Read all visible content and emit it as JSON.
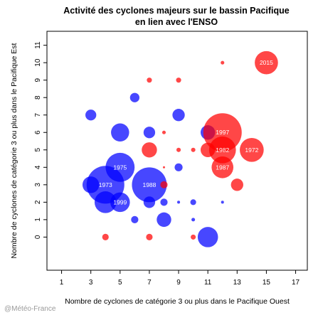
{
  "chart_data": {
    "type": "scatter",
    "title_lines": [
      "Activité des cyclones majeurs sur le bassin Pacifique",
      "en lien avec l'ENSO"
    ],
    "xlabel": "Nombre de cyclones de catégorie 3 ou plus dans le Pacifique Ouest",
    "ylabel": "Nombre de cyclones de catégorie 3 ou plus dans le Pacifique Est",
    "xlim": [
      0,
      17.8
    ],
    "ylim": [
      -1.9,
      11.8
    ],
    "xticks": [
      1,
      3,
      5,
      7,
      9,
      11,
      13,
      15,
      17
    ],
    "yticks": [
      0,
      1,
      2,
      3,
      4,
      5,
      6,
      7,
      8,
      9,
      10,
      11
    ],
    "grid": false,
    "legend": "none",
    "colors": {
      "red": "#ff0000",
      "blue": "#0000ff"
    },
    "points": [
      {
        "x": 15,
        "y": 10,
        "size": 3.2,
        "color": "red",
        "label": "2015"
      },
      {
        "x": 12,
        "y": 10,
        "size": 0.5,
        "color": "red",
        "label": ""
      },
      {
        "x": 7,
        "y": 9,
        "size": 0.7,
        "color": "red",
        "label": ""
      },
      {
        "x": 9,
        "y": 9,
        "size": 0.7,
        "color": "red",
        "label": ""
      },
      {
        "x": 6,
        "y": 8,
        "size": 1.3,
        "color": "blue",
        "label": ""
      },
      {
        "x": 3,
        "y": 7,
        "size": 1.5,
        "color": "blue",
        "label": ""
      },
      {
        "x": 9,
        "y": 7,
        "size": 1.7,
        "color": "blue",
        "label": ""
      },
      {
        "x": 5,
        "y": 6,
        "size": 2.5,
        "color": "blue",
        "label": ""
      },
      {
        "x": 7,
        "y": 6,
        "size": 1.6,
        "color": "blue",
        "label": ""
      },
      {
        "x": 8,
        "y": 6,
        "size": 0.5,
        "color": "red",
        "label": ""
      },
      {
        "x": 11,
        "y": 6,
        "size": 2.0,
        "color": "blue",
        "label": ""
      },
      {
        "x": 12,
        "y": 6,
        "size": 5.3,
        "color": "red",
        "label": "1997"
      },
      {
        "x": 7,
        "y": 5,
        "size": 2.1,
        "color": "red",
        "label": ""
      },
      {
        "x": 9,
        "y": 5,
        "size": 0.6,
        "color": "red",
        "label": ""
      },
      {
        "x": 10,
        "y": 5,
        "size": 0.6,
        "color": "red",
        "label": ""
      },
      {
        "x": 11,
        "y": 5,
        "size": 2.0,
        "color": "red",
        "label": ""
      },
      {
        "x": 12,
        "y": 5,
        "size": 3.7,
        "color": "red",
        "label": "1982"
      },
      {
        "x": 14,
        "y": 5,
        "size": 3.3,
        "color": "red",
        "label": "1972"
      },
      {
        "x": 5,
        "y": 4,
        "size": 4.0,
        "color": "blue",
        "label": "1975"
      },
      {
        "x": 8,
        "y": 4,
        "size": 0.3,
        "color": "red",
        "label": ""
      },
      {
        "x": 9,
        "y": 4,
        "size": 1.1,
        "color": "blue",
        "label": ""
      },
      {
        "x": 12,
        "y": 4,
        "size": 3.0,
        "color": "red",
        "label": "1987"
      },
      {
        "x": 3,
        "y": 3,
        "size": 2.3,
        "color": "blue",
        "label": ""
      },
      {
        "x": 4,
        "y": 3,
        "size": 5.2,
        "color": "blue",
        "label": "1973"
      },
      {
        "x": 7,
        "y": 3,
        "size": 4.8,
        "color": "blue",
        "label": "1988"
      },
      {
        "x": 8,
        "y": 3,
        "size": 1.0,
        "color": "red",
        "label": ""
      },
      {
        "x": 13,
        "y": 3,
        "size": 1.7,
        "color": "red",
        "label": ""
      },
      {
        "x": 4,
        "y": 2,
        "size": 3.0,
        "color": "blue",
        "label": ""
      },
      {
        "x": 5,
        "y": 2,
        "size": 2.7,
        "color": "blue",
        "label": "1999"
      },
      {
        "x": 7,
        "y": 2,
        "size": 1.6,
        "color": "blue",
        "label": ""
      },
      {
        "x": 8,
        "y": 2,
        "size": 1.0,
        "color": "blue",
        "label": ""
      },
      {
        "x": 9,
        "y": 2,
        "size": 0.4,
        "color": "blue",
        "label": ""
      },
      {
        "x": 10,
        "y": 2,
        "size": 0.8,
        "color": "blue",
        "label": ""
      },
      {
        "x": 12,
        "y": 2,
        "size": 0.4,
        "color": "blue",
        "label": ""
      },
      {
        "x": 6,
        "y": 1,
        "size": 1.0,
        "color": "blue",
        "label": ""
      },
      {
        "x": 8,
        "y": 1,
        "size": 2.0,
        "color": "blue",
        "label": ""
      },
      {
        "x": 10,
        "y": 1,
        "size": 0.5,
        "color": "blue",
        "label": ""
      },
      {
        "x": 4,
        "y": 0,
        "size": 0.9,
        "color": "red",
        "label": ""
      },
      {
        "x": 7,
        "y": 0,
        "size": 0.9,
        "color": "red",
        "label": ""
      },
      {
        "x": 10,
        "y": 0,
        "size": 0.7,
        "color": "red",
        "label": ""
      },
      {
        "x": 11,
        "y": 0,
        "size": 2.8,
        "color": "blue",
        "label": ""
      }
    ]
  },
  "credit": "@Météo-France"
}
